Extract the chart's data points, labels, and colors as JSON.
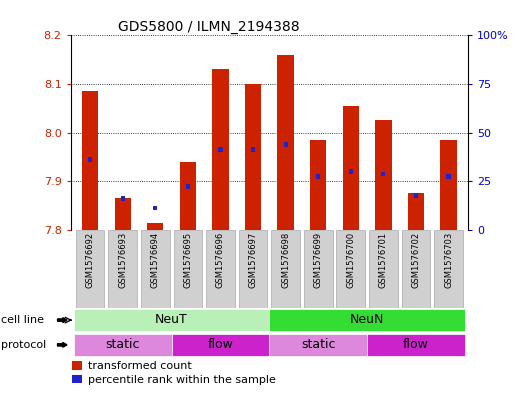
{
  "title": "GDS5800 / ILMN_2194388",
  "samples": [
    "GSM1576692",
    "GSM1576693",
    "GSM1576694",
    "GSM1576695",
    "GSM1576696",
    "GSM1576697",
    "GSM1576698",
    "GSM1576699",
    "GSM1576700",
    "GSM1576701",
    "GSM1576702",
    "GSM1576703"
  ],
  "red_values": [
    8.085,
    7.865,
    7.815,
    7.94,
    8.13,
    8.1,
    8.16,
    7.985,
    8.055,
    8.025,
    7.875,
    7.985
  ],
  "blue_values": [
    7.945,
    7.865,
    7.845,
    7.89,
    7.965,
    7.965,
    7.975,
    7.91,
    7.92,
    7.915,
    7.87,
    7.91
  ],
  "ylim_left": [
    7.8,
    8.2
  ],
  "ylim_right": [
    0,
    100
  ],
  "yticks_left": [
    7.8,
    7.9,
    8.0,
    8.1,
    8.2
  ],
  "yticks_right": [
    0,
    25,
    50,
    75,
    100
  ],
  "ytick_labels_right": [
    "0",
    "25",
    "50",
    "75",
    "100%"
  ],
  "bar_bottom": 7.8,
  "red_color": "#cc2200",
  "blue_color": "#2222cc",
  "cell_lines": [
    {
      "label": "NeuT",
      "start": 0,
      "end": 6,
      "color": "#b8f0b8"
    },
    {
      "label": "NeuN",
      "start": 6,
      "end": 12,
      "color": "#33dd33"
    }
  ],
  "protocols": [
    {
      "label": "static",
      "start": 0,
      "end": 3,
      "color": "#dd88dd"
    },
    {
      "label": "flow",
      "start": 3,
      "end": 6,
      "color": "#cc22cc"
    },
    {
      "label": "static",
      "start": 6,
      "end": 9,
      "color": "#dd88dd"
    },
    {
      "label": "flow",
      "start": 9,
      "end": 12,
      "color": "#cc22cc"
    }
  ],
  "bar_width": 0.5,
  "tick_label_color_left": "#cc2200",
  "tick_label_color_right": "#0000cc",
  "background_color": "#ffffff",
  "sample_box_color": "#d0d0d0",
  "sample_box_edge": "#aaaaaa"
}
